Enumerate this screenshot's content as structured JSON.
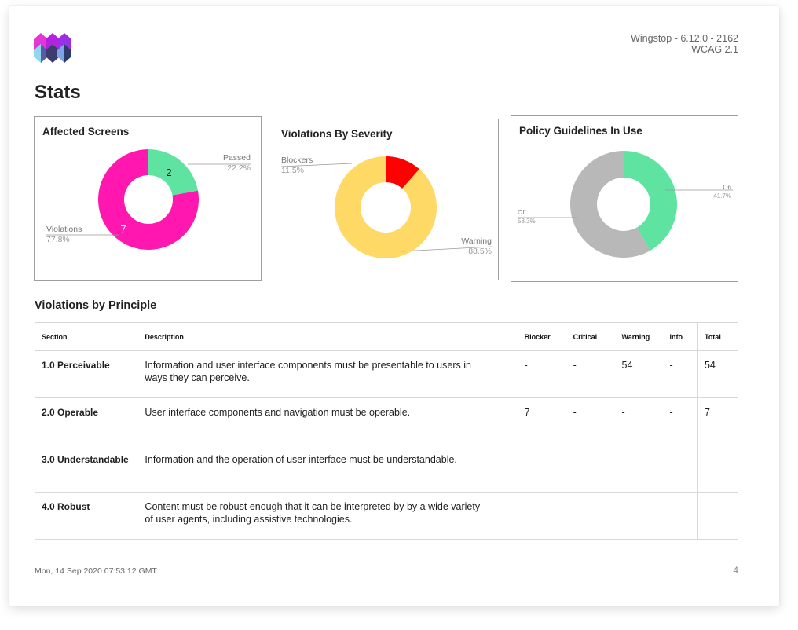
{
  "header": {
    "app_version": "Wingstop - 6.12.0 - 2162",
    "standard": "WCAG 2.1"
  },
  "page_title": "Stats",
  "charts": {
    "affected_screens": {
      "title": "Affected Screens",
      "passed": {
        "label": "Passed",
        "pct": "22.2%",
        "count": "2"
      },
      "violations": {
        "label": "Violations",
        "pct": "77.8%",
        "count": "7"
      }
    },
    "violations_by_severity": {
      "title": "Violations By Severity",
      "blockers": {
        "label": "Blockers",
        "pct": "11.5%"
      },
      "warning": {
        "label": "Warning",
        "pct": "88.5%"
      }
    },
    "policy_guidelines": {
      "title": "Policy Guidelines In Use",
      "on": {
        "label": "On",
        "pct": "41.7%"
      },
      "off": {
        "label": "Off",
        "pct": "58.3%"
      }
    }
  },
  "chart_data": [
    {
      "type": "pie",
      "title": "Affected Screens",
      "categories": [
        "Passed",
        "Violations"
      ],
      "values": [
        2,
        7
      ],
      "percentages": [
        22.2,
        77.8
      ],
      "colors": [
        "#5ee3a1",
        "#ff17b0"
      ]
    },
    {
      "type": "pie",
      "title": "Violations By Severity",
      "categories": [
        "Blockers",
        "Warning"
      ],
      "percentages": [
        11.5,
        88.5
      ],
      "colors": [
        "#ff0000",
        "#ffd966"
      ]
    },
    {
      "type": "pie",
      "title": "Policy Guidelines In Use",
      "categories": [
        "On",
        "Off"
      ],
      "percentages": [
        41.7,
        58.3
      ],
      "colors": [
        "#5ee3a1",
        "#b8b8b8"
      ]
    }
  ],
  "principles": {
    "title": "Violations by Principle",
    "columns": [
      "Section",
      "Description",
      "Blocker",
      "Critical",
      "Warning",
      "Info",
      "Total"
    ],
    "rows": [
      {
        "section": "1.0 Perceivable",
        "description": "Information and user interface components must be presentable to users in ways they can perceive.",
        "blocker": "-",
        "critical": "-",
        "warning": "54",
        "info": "-",
        "total": "54"
      },
      {
        "section": "2.0 Operable",
        "description": "User interface components and navigation must be operable.",
        "blocker": "7",
        "critical": "-",
        "warning": "-",
        "info": "-",
        "total": "7"
      },
      {
        "section": "3.0 Understandable",
        "description": "Information and the operation of user interface must be understandable.",
        "blocker": "-",
        "critical": "-",
        "warning": "-",
        "info": "-",
        "total": "-"
      },
      {
        "section": "4.0 Robust",
        "description": "Content must be robust enough that it can be interpreted by by a wide variety of user agents, including assistive technologies.",
        "blocker": "-",
        "critical": "-",
        "warning": "-",
        "info": "-",
        "total": "-"
      }
    ]
  },
  "footer": {
    "date": "Mon, 14 Sep 2020 07:53:12 GMT",
    "page_number": "4"
  },
  "colors": {
    "passed_on": "#5ee3a1",
    "violations": "#ff17b0",
    "blockers": "#ff0000",
    "warning": "#ffd966",
    "off": "#b8b8b8"
  }
}
